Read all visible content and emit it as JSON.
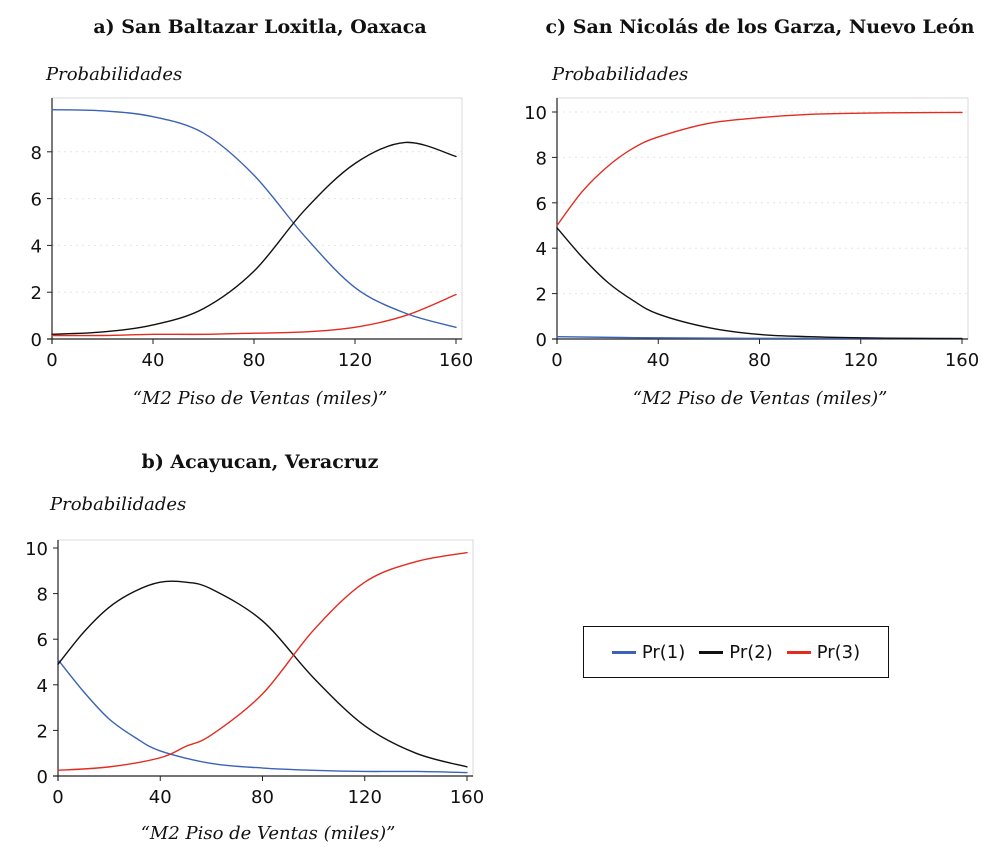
{
  "chart_data": [
    {
      "id": "a",
      "type": "line",
      "title": "a) San Baltazar Loxitla, Oaxaca",
      "ylabel": "Probabilidades",
      "xlabel": "“M2 Piso de Ventas (miles)”",
      "xlim": [
        0,
        160
      ],
      "ylim": [
        0,
        10
      ],
      "xticks": [
        "0",
        "40",
        "80",
        "120",
        "160"
      ],
      "yticks": [
        "0",
        "2",
        "4",
        "6",
        "8"
      ],
      "grid": true,
      "series": [
        {
          "name": "Pr(1)",
          "color": "#3b63b5",
          "x": [
            0,
            20,
            40,
            60,
            80,
            100,
            120,
            140,
            160
          ],
          "y": [
            9.8,
            9.75,
            9.5,
            8.8,
            7.0,
            4.4,
            2.2,
            1.1,
            0.5
          ]
        },
        {
          "name": "Pr(2)",
          "color": "#111111",
          "x": [
            0,
            20,
            40,
            60,
            80,
            100,
            120,
            140,
            160
          ],
          "y": [
            0.2,
            0.3,
            0.6,
            1.3,
            2.9,
            5.5,
            7.5,
            8.4,
            7.8
          ]
        },
        {
          "name": "Pr(3)",
          "color": "#e32b20",
          "x": [
            0,
            20,
            40,
            60,
            80,
            100,
            120,
            140,
            160
          ],
          "y": [
            0.15,
            0.15,
            0.2,
            0.2,
            0.25,
            0.3,
            0.5,
            1.0,
            1.9
          ]
        }
      ]
    },
    {
      "id": "c",
      "type": "line",
      "title": "c) San Nicolás de los Garza, Nuevo León",
      "ylabel": "Probabilidades",
      "xlabel": "“M2 Piso de Ventas (miles)”",
      "xlim": [
        0,
        160
      ],
      "ylim": [
        0,
        10
      ],
      "xticks": [
        "0",
        "40",
        "80",
        "120",
        "160"
      ],
      "yticks": [
        "0",
        "2",
        "4",
        "6",
        "8",
        "10"
      ],
      "grid": true,
      "series": [
        {
          "name": "Pr(1)",
          "color": "#3b63b5",
          "x": [
            0,
            40,
            80,
            120,
            160
          ],
          "y": [
            0.1,
            0.05,
            0.03,
            0.02,
            0.02
          ]
        },
        {
          "name": "Pr(2)",
          "color": "#111111",
          "x": [
            0,
            10,
            20,
            30,
            40,
            60,
            80,
            100,
            120,
            140,
            160
          ],
          "y": [
            4.9,
            3.6,
            2.5,
            1.7,
            1.1,
            0.5,
            0.2,
            0.1,
            0.05,
            0.03,
            0.02
          ]
        },
        {
          "name": "Pr(3)",
          "color": "#e32b20",
          "x": [
            0,
            10,
            20,
            30,
            40,
            60,
            80,
            100,
            120,
            140,
            160
          ],
          "y": [
            5.0,
            6.5,
            7.6,
            8.4,
            8.9,
            9.5,
            9.75,
            9.9,
            9.95,
            9.97,
            9.98
          ]
        }
      ]
    },
    {
      "id": "b",
      "type": "line",
      "title": "b) Acayucan, Veracruz",
      "ylabel": "Probabilidades",
      "xlabel": "“M2 Piso de Ventas (miles)”",
      "xlim": [
        0,
        160
      ],
      "ylim": [
        0,
        10
      ],
      "xticks": [
        "0",
        "40",
        "80",
        "120",
        "160"
      ],
      "yticks": [
        "0",
        "2",
        "4",
        "6",
        "8",
        "10"
      ],
      "grid": false,
      "series": [
        {
          "name": "Pr(1)",
          "color": "#3b63b5",
          "x": [
            0,
            10,
            20,
            30,
            40,
            60,
            80,
            100,
            120,
            140,
            160
          ],
          "y": [
            5.1,
            3.7,
            2.5,
            1.7,
            1.1,
            0.55,
            0.35,
            0.25,
            0.2,
            0.2,
            0.15
          ]
        },
        {
          "name": "Pr(2)",
          "color": "#111111",
          "x": [
            0,
            10,
            20,
            30,
            40,
            50,
            60,
            80,
            100,
            120,
            140,
            160
          ],
          "y": [
            4.9,
            6.3,
            7.4,
            8.1,
            8.5,
            8.5,
            8.2,
            6.8,
            4.3,
            2.2,
            1.0,
            0.4
          ]
        },
        {
          "name": "Pr(3)",
          "color": "#e32b20",
          "x": [
            0,
            20,
            40,
            50,
            60,
            80,
            100,
            120,
            140,
            160
          ],
          "y": [
            0.25,
            0.4,
            0.8,
            1.3,
            1.8,
            3.6,
            6.4,
            8.5,
            9.4,
            9.8
          ]
        }
      ]
    }
  ],
  "legend": {
    "items": [
      {
        "label": "Pr(1)",
        "color": "#3b63b5"
      },
      {
        "label": "Pr(2)",
        "color": "#111111"
      },
      {
        "label": "Pr(3)",
        "color": "#e32b20"
      }
    ]
  }
}
